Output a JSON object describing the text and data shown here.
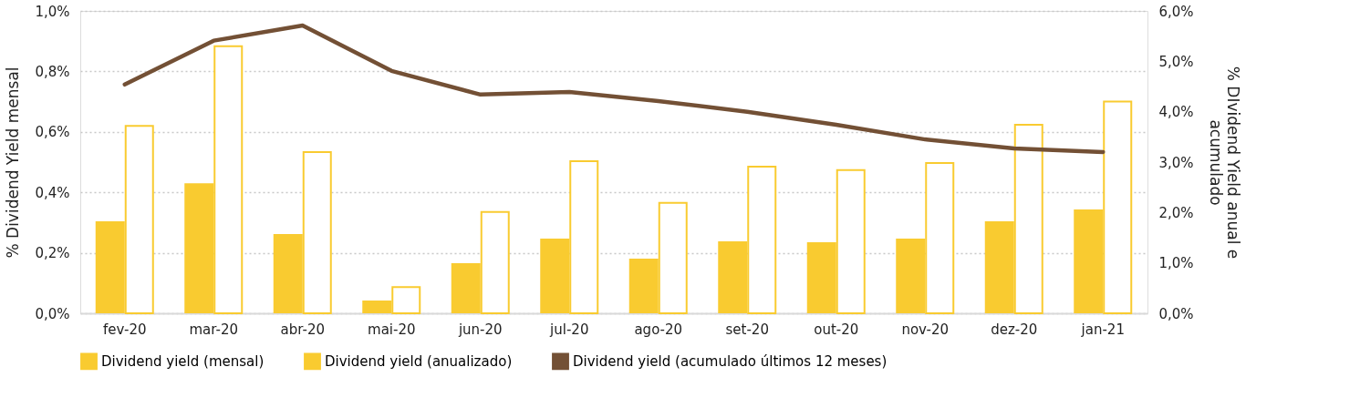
{
  "chart_data": {
    "type": "bar",
    "categories": [
      "fev-20",
      "mar-20",
      "abr-20",
      "mai-20",
      "jun-20",
      "jul-20",
      "ago-20",
      "set-20",
      "out-20",
      "nov-20",
      "dez-20",
      "jan-21"
    ],
    "ylabel": "% Dividend Yield mensal",
    "y2label": "% DIvidend Yield anual e acumulado",
    "ylim": [
      0,
      1.0
    ],
    "yticks": [
      {
        "value": 0,
        "label": "0,0%"
      },
      {
        "value": 0.2,
        "label": "0,2%"
      },
      {
        "value": 0.4,
        "label": "0,4%"
      },
      {
        "value": 0.6,
        "label": "0,6%"
      },
      {
        "value": 0.8,
        "label": "0,8%"
      },
      {
        "value": 1.0,
        "label": "1,0%"
      }
    ],
    "y2lim": [
      0,
      6.0
    ],
    "y2ticks": [
      {
        "value": 0,
        "label": "0,0%"
      },
      {
        "value": 1,
        "label": "1,0%"
      },
      {
        "value": 2,
        "label": "2,0%"
      },
      {
        "value": 3,
        "label": "3,0%"
      },
      {
        "value": 4,
        "label": "4,0%"
      },
      {
        "value": 5,
        "label": "5,0%"
      },
      {
        "value": 6,
        "label": "6,0%"
      }
    ],
    "series": [
      {
        "name": "Dividend yield (mensal)",
        "color": "#f9cb30",
        "values": [
          0.304,
          0.43,
          0.262,
          0.042,
          0.166,
          0.247,
          0.181,
          0.238,
          0.235,
          0.247,
          0.304,
          0.343
        ]
      },
      {
        "name": "Dividend yield (anualizado)",
        "type": "bar",
        "axis": "y2",
        "color": "#f9cb30",
        "values": [
          3.72,
          5.3,
          3.2,
          0.52,
          2.01,
          3.02,
          2.19,
          2.91,
          2.84,
          2.98,
          3.74,
          4.2
        ]
      },
      {
        "name": "Dividend yield (acumulado últimos 12 meses)",
        "type": "line",
        "axis": "y2",
        "color": "#735035",
        "values": [
          4.54,
          5.41,
          5.71,
          4.81,
          4.34,
          4.39,
          4.21,
          4.0,
          3.74,
          3.45,
          3.27,
          3.2
        ]
      }
    ],
    "grid": "y",
    "legend": "bottom",
    "marker": "none",
    "line_style": "solid"
  }
}
